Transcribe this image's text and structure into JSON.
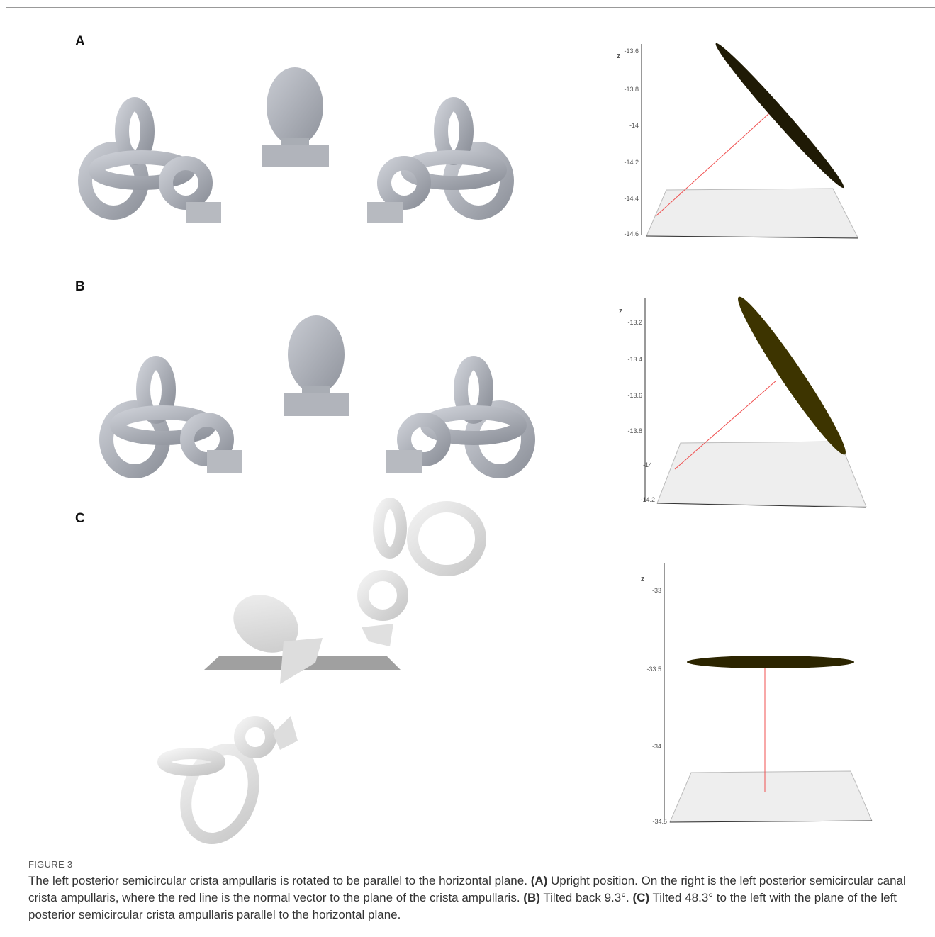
{
  "figure": {
    "panels": [
      "A",
      "B",
      "C"
    ],
    "plots": [
      {
        "axis_label": "z",
        "ticks": [
          "-13.6",
          "-13.8",
          "-14",
          "-14.2",
          "-14.4",
          "-14.6"
        ]
      },
      {
        "axis_label": "z",
        "ticks": [
          "-13.2",
          "-13.4",
          "-13.6",
          "-13.8",
          "-14",
          "-14.2"
        ]
      },
      {
        "axis_label": "z",
        "ticks": [
          "-33",
          "-33.5",
          "-34",
          "-34.5"
        ]
      }
    ],
    "label": "FIGURE 3",
    "caption": [
      "The left posterior semicircular crista ampullaris is rotated to be parallel to the horizontal plane.",
      "(A)",
      "Upright position. On the right is the left posterior semicircular canal crista ampullaris, where the red line is the normal vector to the plane of the crista ampullaris.",
      "(B)",
      "Tilted back 9.3°.",
      "(C)",
      "Tilted 48.3° to the left with the plane of the left posterior semicircular crista ampullaris parallel to the horizontal plane."
    ]
  }
}
